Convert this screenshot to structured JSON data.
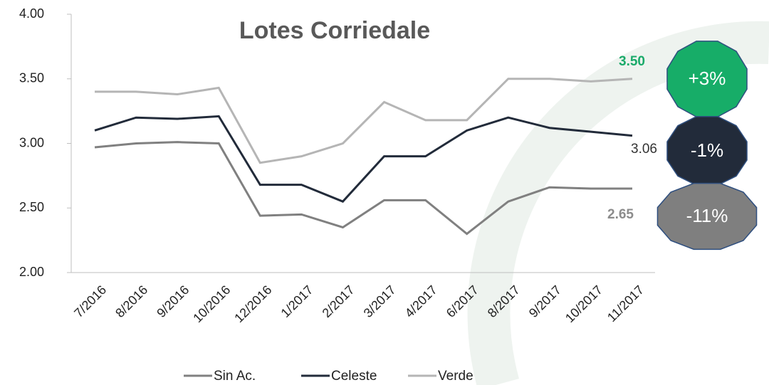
{
  "chart_data": {
    "type": "line",
    "title": "Lotes Corriedale",
    "categories": [
      "7/2016",
      "8/2016",
      "9/2016",
      "10/2016",
      "12/2016",
      "1/2017",
      "2/2017",
      "3/2017",
      "4/2017",
      "6/2017",
      "8/2017",
      "9/2017",
      "10/2017",
      "11/2017"
    ],
    "series": [
      {
        "name": "Sin Ac.",
        "color": "#808080",
        "values": [
          2.97,
          3.0,
          3.01,
          3.0,
          2.44,
          2.45,
          2.35,
          2.56,
          2.56,
          2.3,
          2.55,
          2.66,
          2.65,
          2.65
        ]
      },
      {
        "name": "Celeste",
        "color": "#222b3a",
        "values": [
          3.1,
          3.2,
          3.19,
          3.21,
          2.68,
          2.68,
          2.55,
          2.9,
          2.9,
          3.1,
          3.2,
          3.12,
          3.09,
          3.06
        ]
      },
      {
        "name": "Verde",
        "color": "#b5b5b5",
        "values": [
          3.4,
          3.4,
          3.38,
          3.43,
          2.85,
          2.9,
          3.0,
          3.32,
          3.18,
          3.18,
          3.5,
          3.5,
          3.48,
          3.5
        ]
      }
    ],
    "ylim": [
      2.0,
      4.0
    ],
    "yticks": [
      {
        "value": 2.0,
        "label": "2.00"
      },
      {
        "value": 2.5,
        "label": "2.50"
      },
      {
        "value": 3.0,
        "label": "3.00"
      },
      {
        "value": 3.5,
        "label": "3.50"
      },
      {
        "value": 4.0,
        "label": "4.00"
      }
    ],
    "annotations": [
      {
        "text": "3.50",
        "color": "#1aaa6a"
      },
      {
        "text": "3.06",
        "color": "#333333"
      },
      {
        "text": "2.65",
        "color": "#8c8c8c"
      }
    ],
    "badges": [
      {
        "text": "+3%",
        "color": "#17ad68"
      },
      {
        "text": "-1%",
        "color": "#222b3a"
      },
      {
        "text": "-11%",
        "color": "#7f7f7f"
      }
    ],
    "legend": "bottom"
  }
}
